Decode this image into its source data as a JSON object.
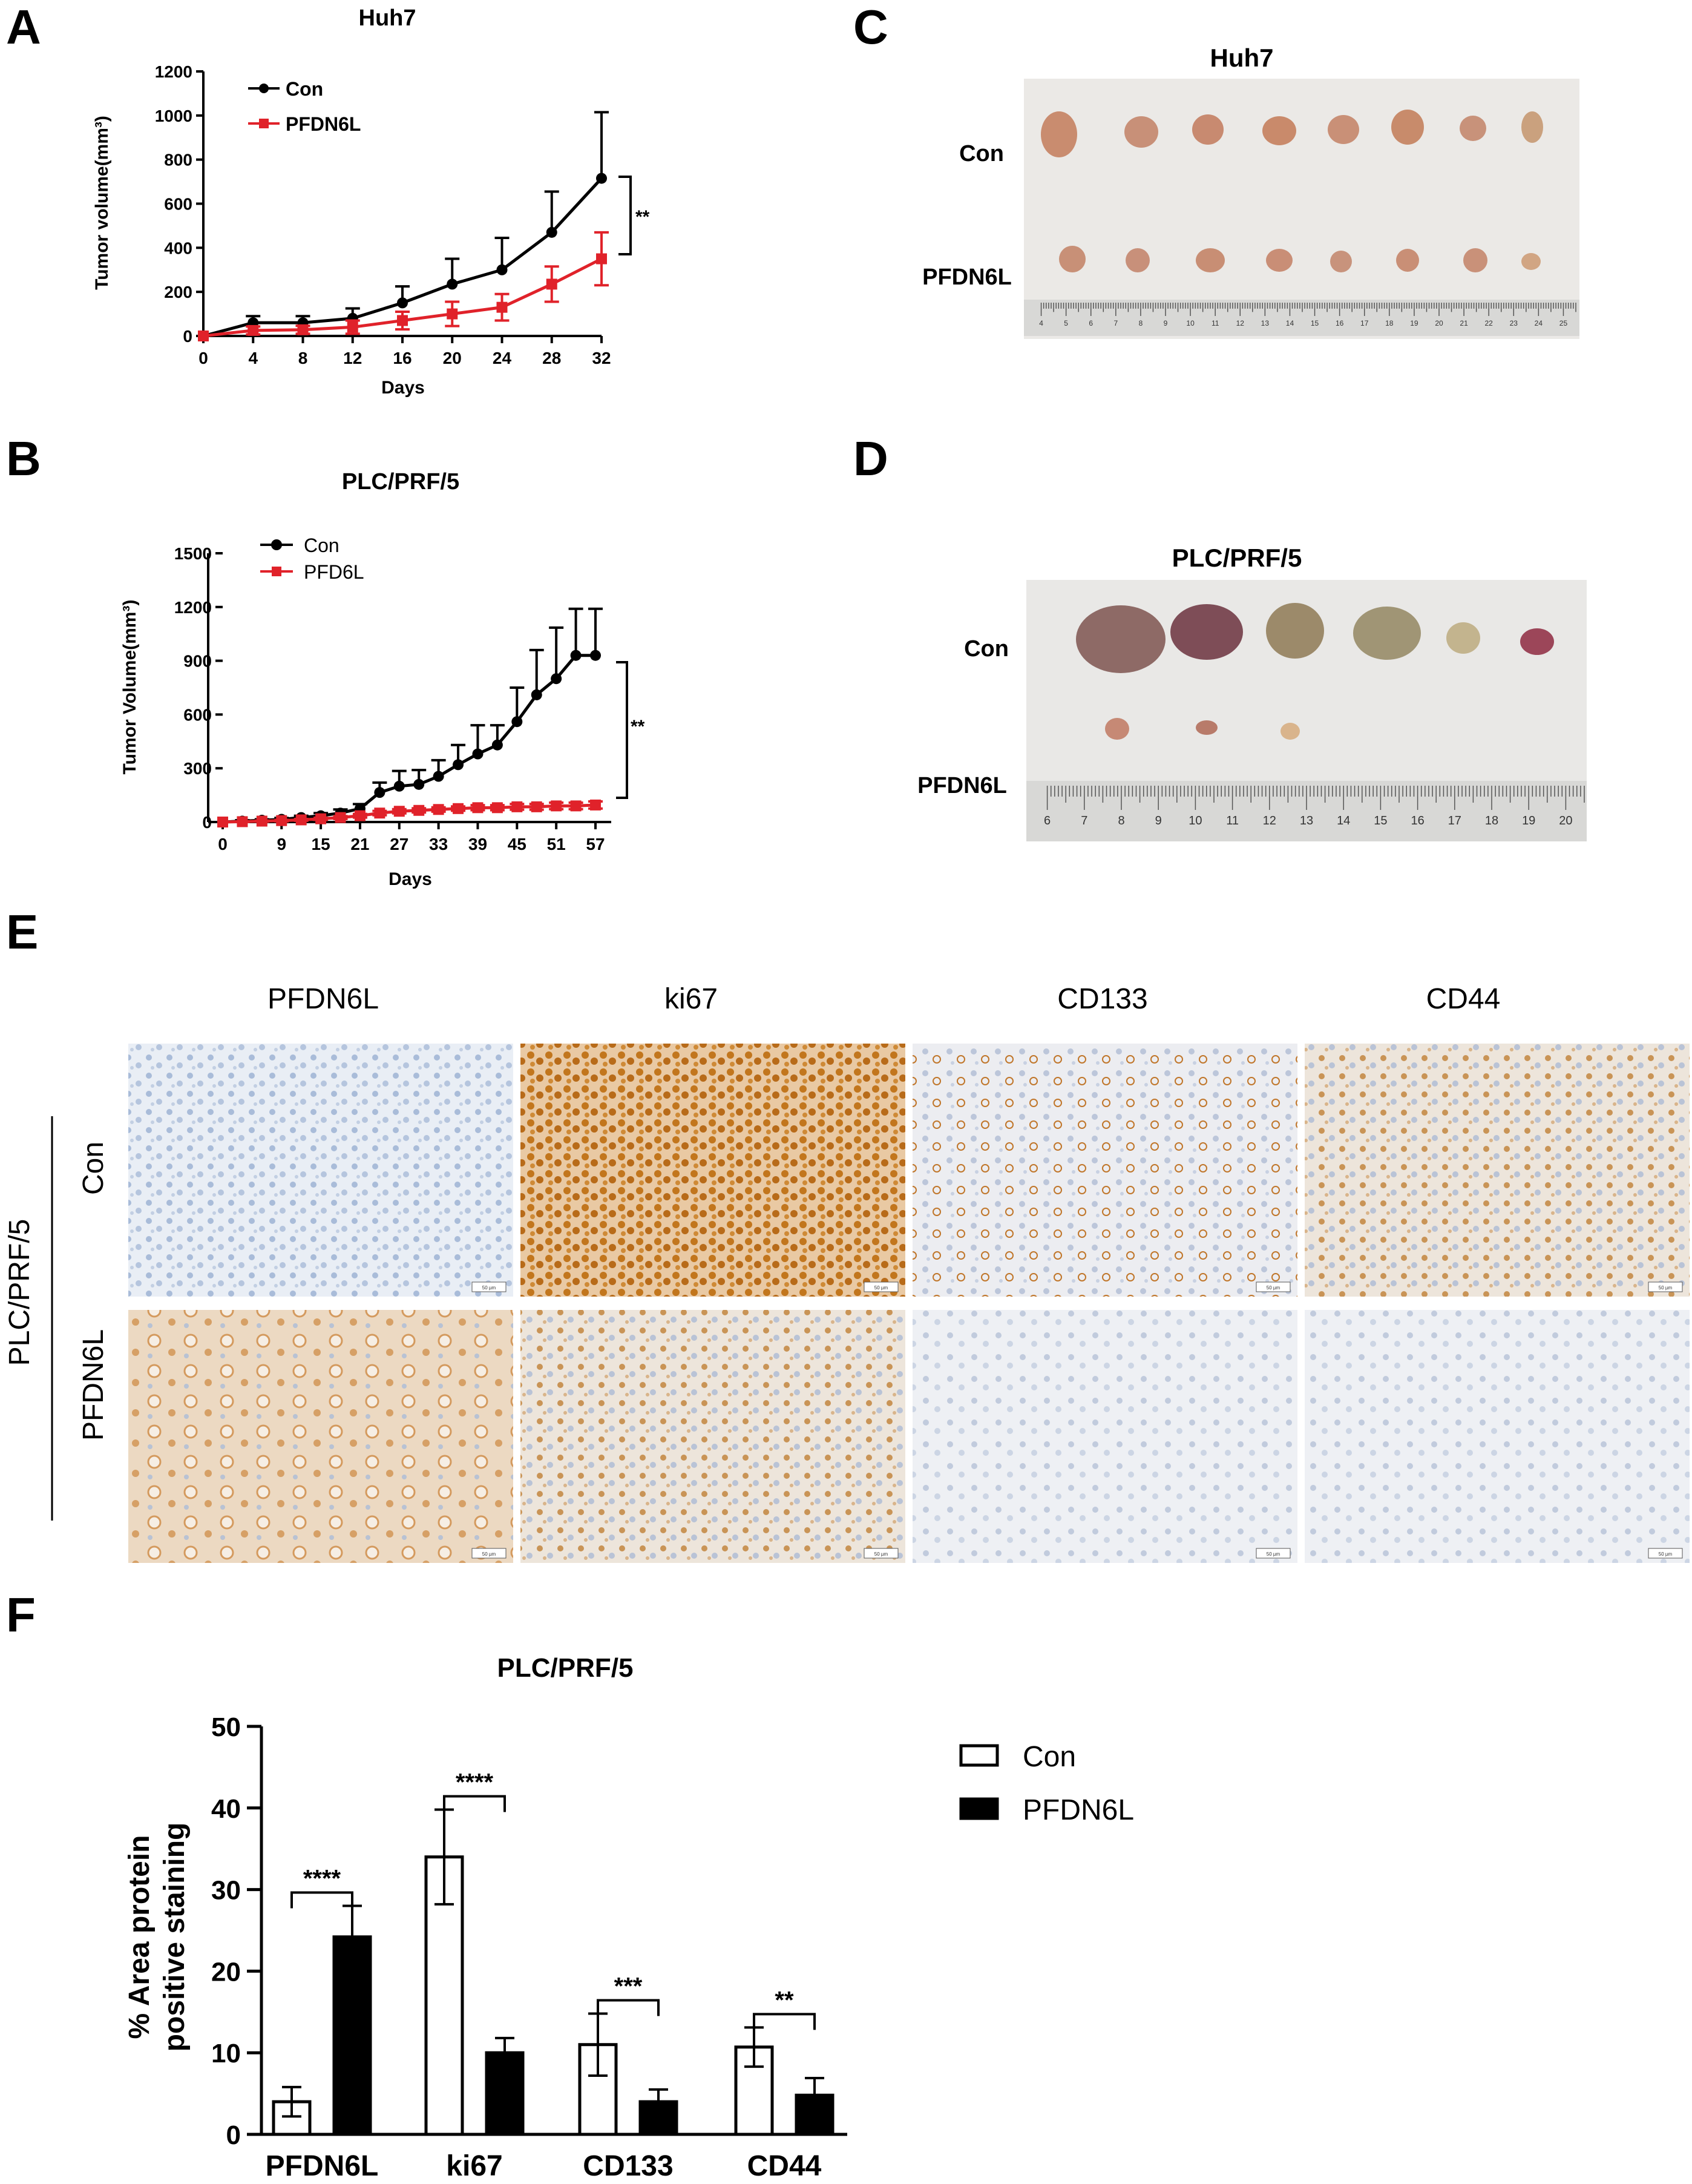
{
  "panel_labels": [
    "A",
    "B",
    "C",
    "D",
    "E",
    "F"
  ],
  "chart_data": [
    {
      "id": "A",
      "type": "line",
      "title": "Huh7",
      "xlabel": "Days",
      "ylabel": "Tumor volume(mm³)",
      "x": [
        0,
        4,
        8,
        12,
        16,
        20,
        24,
        28,
        32
      ],
      "xlim": [
        0,
        32
      ],
      "ylim": [
        0,
        1200
      ],
      "xticks": [
        0,
        4,
        8,
        12,
        16,
        20,
        24,
        28,
        32
      ],
      "yticks": [
        0,
        200,
        400,
        600,
        800,
        1000,
        1200
      ],
      "series": [
        {
          "name": "Con",
          "color": "#000000",
          "marker": "circle",
          "values": [
            0,
            60,
            60,
            80,
            150,
            235,
            300,
            470,
            715
          ],
          "err": [
            0,
            30,
            30,
            45,
            75,
            115,
            145,
            185,
            300
          ]
        },
        {
          "name": "PFDN6L",
          "color": "#e0222a",
          "marker": "square",
          "values": [
            0,
            25,
            28,
            40,
            70,
            100,
            130,
            235,
            350
          ],
          "err": [
            0,
            18,
            18,
            30,
            40,
            55,
            60,
            80,
            120
          ]
        }
      ],
      "significance": "**",
      "legend_position": "top-left"
    },
    {
      "id": "B",
      "type": "line",
      "title": "PLC/PRF/5",
      "xlabel": "Days",
      "ylabel": "Tumor Volume(mm³)",
      "x": [
        0,
        3,
        6,
        9,
        12,
        15,
        18,
        21,
        24,
        27,
        30,
        33,
        36,
        39,
        42,
        45,
        48,
        51,
        54,
        57
      ],
      "xlim": [
        0,
        57
      ],
      "ylim": [
        0,
        1500
      ],
      "xticks": [
        0,
        9,
        15,
        21,
        27,
        33,
        39,
        45,
        51,
        57
      ],
      "yticks": [
        0,
        300,
        600,
        900,
        1200,
        1500
      ],
      "series": [
        {
          "name": "Con",
          "color": "#000000",
          "marker": "circle",
          "values": [
            0,
            5,
            10,
            15,
            25,
            35,
            50,
            75,
            165,
            200,
            210,
            255,
            320,
            380,
            430,
            560,
            710,
            800,
            930,
            930
          ],
          "err": [
            0,
            5,
            5,
            8,
            10,
            15,
            20,
            25,
            55,
            85,
            80,
            90,
            110,
            160,
            110,
            190,
            250,
            285,
            260,
            260
          ]
        },
        {
          "name": "PFD6L",
          "color": "#e0222a",
          "marker": "square",
          "values": [
            0,
            2,
            5,
            8,
            12,
            18,
            25,
            35,
            50,
            60,
            65,
            70,
            75,
            80,
            80,
            85,
            85,
            90,
            90,
            95
          ],
          "err": [
            0,
            2,
            3,
            4,
            5,
            6,
            8,
            10,
            12,
            12,
            12,
            12,
            12,
            14,
            14,
            16,
            16,
            18,
            18,
            20
          ]
        }
      ],
      "significance": "**",
      "legend_position": "top-left"
    },
    {
      "id": "F",
      "type": "bar",
      "title": "PLC/PRF/5",
      "ylabel_line1": "% Area protein",
      "ylabel_line2": "positive staining",
      "categories": [
        "PFDN6L",
        "ki67",
        "CD133",
        "CD44"
      ],
      "ylim": [
        0,
        50
      ],
      "yticks": [
        0,
        10,
        20,
        30,
        40,
        50
      ],
      "series": [
        {
          "name": "Con",
          "fill": "#ffffff",
          "values": [
            4,
            34,
            11,
            10.7
          ],
          "err": [
            1.8,
            5.8,
            3.8,
            2.4
          ]
        },
        {
          "name": "PFDN6L",
          "fill": "#000000",
          "values": [
            24.2,
            10,
            4,
            4.8
          ],
          "err": [
            3.8,
            1.8,
            1.5,
            2.1
          ]
        }
      ],
      "significance": [
        "****",
        "****",
        "***",
        "**"
      ],
      "legend_position": "right"
    }
  ],
  "panel_c": {
    "title": "Huh7",
    "row_labels": [
      "Con",
      "PFDN6L"
    ],
    "ruler_ticks": [
      "4",
      "5",
      "6",
      "7",
      "8",
      "9",
      "10",
      "11",
      "12",
      "13",
      "14",
      "15",
      "16",
      "17",
      "18",
      "19",
      "20",
      "21",
      "22",
      "23",
      "24",
      "25"
    ]
  },
  "panel_d": {
    "title": "PLC/PRF/5",
    "row_labels": [
      "Con",
      "PFDN6L"
    ],
    "ruler_ticks": [
      "6",
      "7",
      "8",
      "9",
      "10",
      "11",
      "12",
      "13",
      "14",
      "15",
      "16",
      "17",
      "18",
      "19",
      "20"
    ]
  },
  "panel_e": {
    "col_labels": [
      "PFDN6L",
      "ki67",
      "CD133",
      "CD44"
    ],
    "group_label": "PLC/PRF/5",
    "row_labels": [
      "Con",
      "PFDN6L"
    ],
    "scale_label": "50 µm"
  }
}
